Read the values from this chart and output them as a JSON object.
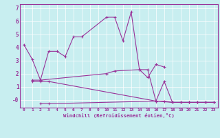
{
  "xlabel": "Windchill (Refroidissement éolien,°C)",
  "bg_color": "#c8eef0",
  "line_color": "#993399",
  "xlim": [
    -0.5,
    23.5
  ],
  "ylim": [
    -0.6,
    7.3
  ],
  "xtick_labels": [
    "0",
    "1",
    "2",
    "3",
    "4",
    "5",
    "6",
    "7",
    "8",
    "9",
    "10",
    "11",
    "12",
    "13",
    "14",
    "15",
    "16",
    "17",
    "18",
    "19",
    "20",
    "21",
    "22",
    "23"
  ],
  "ytick_labels": [
    "-0",
    "1",
    "2",
    "3",
    "4",
    "5",
    "6",
    "7"
  ],
  "ytick_vals": [
    0,
    1,
    2,
    3,
    4,
    5,
    6,
    7
  ],
  "line1_x": [
    0,
    1,
    2,
    3,
    4,
    5,
    6,
    7,
    10,
    11,
    12,
    13,
    14,
    15,
    16,
    17
  ],
  "line1_y": [
    4.2,
    3.1,
    1.5,
    3.7,
    3.7,
    3.3,
    4.8,
    4.8,
    6.3,
    6.3,
    4.5,
    6.7,
    2.3,
    1.7,
    2.7,
    2.5
  ],
  "line2_x": [
    1,
    2,
    10,
    11,
    14,
    15,
    16,
    18,
    19,
    20,
    21,
    22,
    23
  ],
  "line2_y": [
    1.5,
    1.5,
    2.0,
    2.2,
    2.3,
    2.3,
    -0.1,
    -0.2,
    -0.2,
    -0.2,
    -0.2,
    -0.2,
    -0.2
  ],
  "line3_x": [
    2,
    3,
    16,
    17,
    18,
    19,
    20,
    21,
    22,
    23
  ],
  "line3_y": [
    -0.3,
    -0.3,
    -0.1,
    1.4,
    -0.2,
    -0.2,
    -0.2,
    -0.2,
    -0.2,
    -0.2
  ],
  "line4_x": [
    1,
    2,
    3,
    16,
    17,
    18,
    19,
    20,
    21,
    22,
    23
  ],
  "line4_y": [
    1.4,
    1.4,
    1.4,
    -0.1,
    -0.1,
    -0.2,
    -0.2,
    -0.2,
    -0.2,
    -0.2,
    -0.2
  ]
}
